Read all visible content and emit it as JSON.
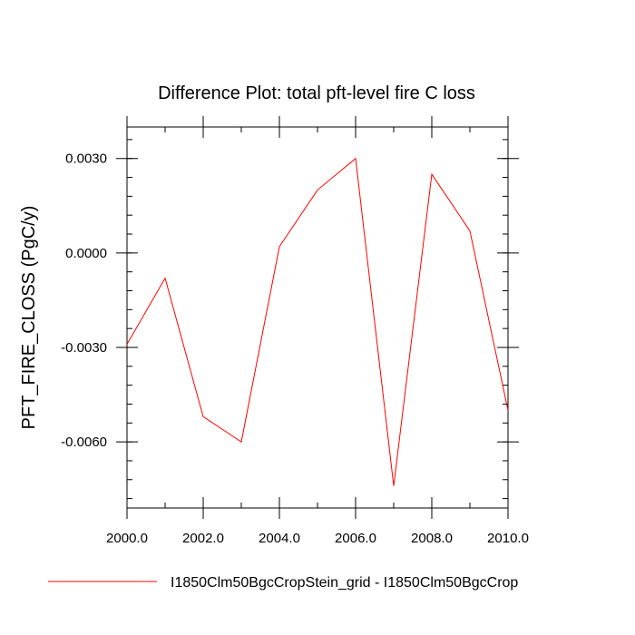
{
  "chart_data": {
    "type": "line",
    "title": "Difference Plot: total pft-level fire C loss",
    "xlabel": "",
    "ylabel": "PFT_FIRE_CLOSS  (PgC/y)",
    "xlim": [
      2000,
      2010
    ],
    "ylim": [
      -0.0081,
      0.004
    ],
    "x_ticks": [
      2000,
      2002,
      2004,
      2006,
      2008,
      2010
    ],
    "x_tick_labels": [
      "2000.0",
      "2002.0",
      "2004.0",
      "2006.0",
      "2008.0",
      "2010.0"
    ],
    "x_minor_step": 1,
    "y_ticks": [
      0.003,
      0.0,
      -0.003,
      -0.006
    ],
    "y_tick_labels": [
      "0.0030",
      "0.0000",
      "-0.0030",
      "-0.0060"
    ],
    "y_minor_step": 0.0006,
    "grid": false,
    "legend_position": "bottom",
    "series": [
      {
        "name": "I1850Clm50BgcCropStein_grid - I1850Clm50BgcCrop",
        "color": "#ff0000",
        "x": [
          2000,
          2001,
          2002,
          2003,
          2004,
          2005,
          2006,
          2007,
          2008,
          2009,
          2010
        ],
        "y": [
          -0.0029,
          -0.0008,
          -0.0052,
          -0.006,
          0.0002,
          0.002,
          0.003,
          -0.0074,
          0.0025,
          0.0007,
          -0.005
        ]
      }
    ]
  }
}
